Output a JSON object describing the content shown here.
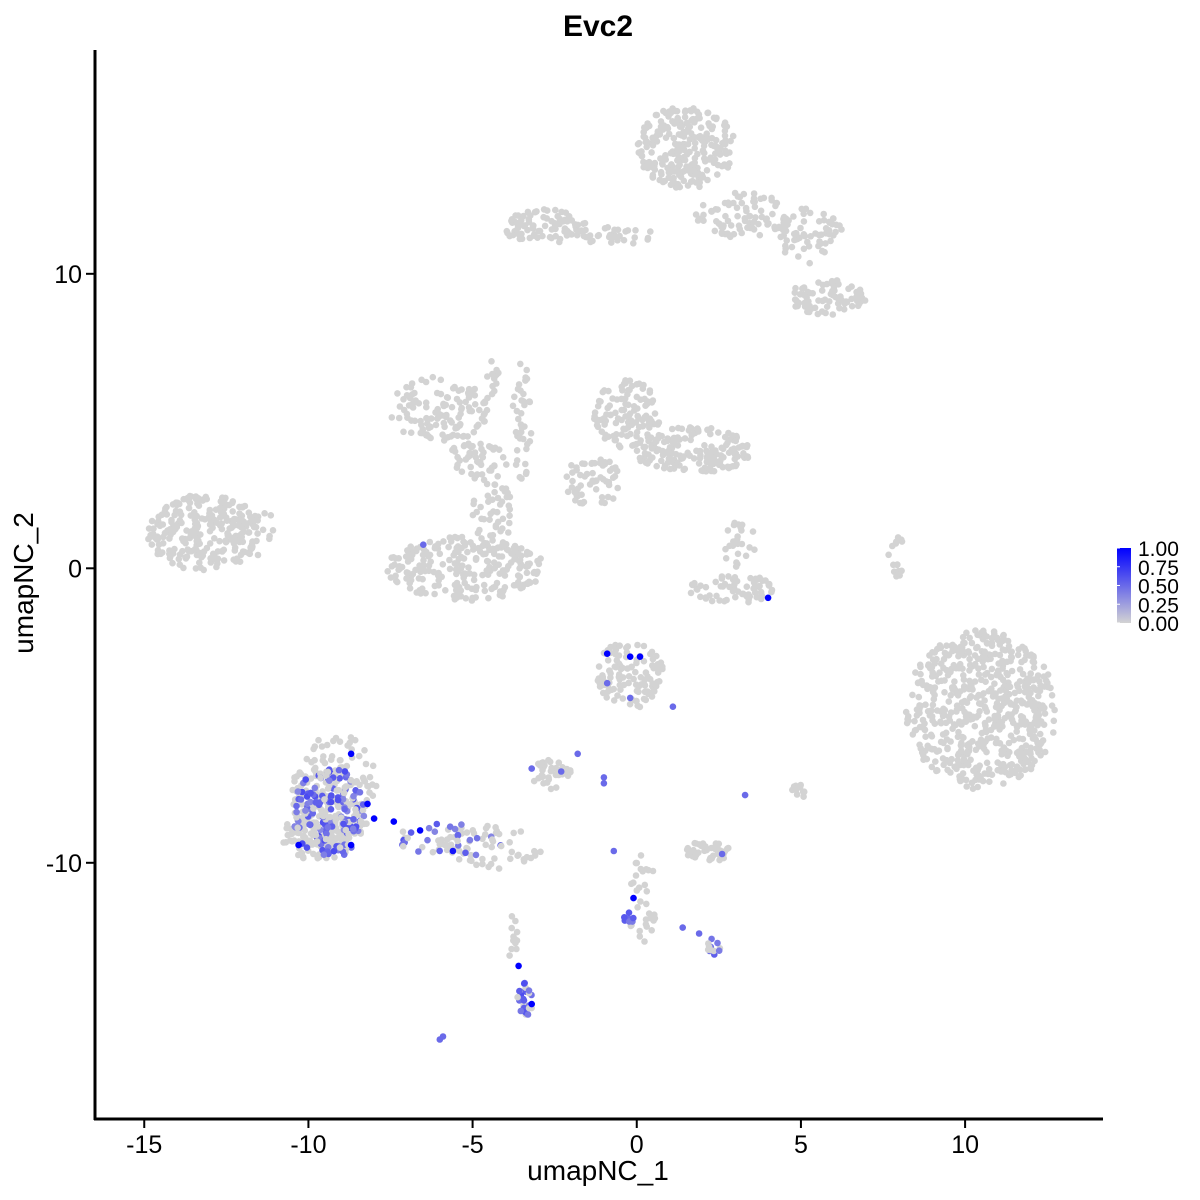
{
  "chart_data": {
    "type": "scatter",
    "title": "Evc2",
    "xlabel": "umapNC_1",
    "ylabel": "umapNC_2",
    "xlim": [
      -16.5,
      14.2
    ],
    "ylim": [
      -18.7,
      17.6
    ],
    "x_ticks": [
      -15,
      -10,
      -5,
      0,
      5,
      10
    ],
    "x_tick_labels": [
      "-15",
      "-10",
      "-5",
      "0",
      "5",
      "10"
    ],
    "y_ticks": [
      -10,
      0,
      10
    ],
    "y_tick_labels": [
      "-10",
      "0",
      "10"
    ],
    "grid": false,
    "legend": {
      "placement": "right",
      "type": "colorbar",
      "labels": [
        "1.00",
        "0.75",
        "0.50",
        "0.25",
        "0.00"
      ],
      "values": [
        1.0,
        0.75,
        0.5,
        0.25,
        0.0
      ],
      "low_color": "#d3d3d3",
      "high_color": "#0000ff"
    },
    "background_clusters": [
      {
        "cx": 1.5,
        "cy": 14.3,
        "rx": 1.5,
        "ry": 1.4,
        "n": 260
      },
      {
        "cx": 3.3,
        "cy": 12.0,
        "rx": 1.5,
        "ry": 0.8,
        "n": 90
      },
      {
        "cx": 5.3,
        "cy": 11.3,
        "rx": 1.0,
        "ry": 1.0,
        "n": 60
      },
      {
        "cx": 5.8,
        "cy": 9.2,
        "rx": 1.2,
        "ry": 0.6,
        "n": 80
      },
      {
        "cx": -2.8,
        "cy": 11.6,
        "rx": 1.3,
        "ry": 0.6,
        "n": 90
      },
      {
        "cx": -0.6,
        "cy": 11.3,
        "rx": 1.2,
        "ry": 0.3,
        "n": 30
      },
      {
        "cx": -6.0,
        "cy": 5.4,
        "rx": 1.6,
        "ry": 1.1,
        "n": 120
      },
      {
        "cx": -4.9,
        "cy": 3.6,
        "rx": 1.0,
        "ry": 0.7,
        "n": 50
      },
      {
        "cx": -3.5,
        "cy": 5.0,
        "rx": 0.3,
        "ry": 2.0,
        "n": 40
      },
      {
        "cx": -5.2,
        "cy": 0.0,
        "rx": 2.4,
        "ry": 1.1,
        "n": 240
      },
      {
        "cx": -4.4,
        "cy": 1.9,
        "rx": 0.6,
        "ry": 1.3,
        "n": 50
      },
      {
        "cx": -0.3,
        "cy": 5.2,
        "rx": 1.0,
        "ry": 1.2,
        "n": 110
      },
      {
        "cx": 1.7,
        "cy": 4.0,
        "rx": 1.8,
        "ry": 0.8,
        "n": 170
      },
      {
        "cx": -1.3,
        "cy": 3.0,
        "rx": 0.9,
        "ry": 0.9,
        "n": 60
      },
      {
        "cx": -13.2,
        "cy": 1.2,
        "rx": 1.7,
        "ry": 1.3,
        "n": 240
      },
      {
        "cx": -11.8,
        "cy": 1.3,
        "rx": 0.8,
        "ry": 0.9,
        "n": 30
      },
      {
        "cx": 10.5,
        "cy": -4.8,
        "rx": 2.3,
        "ry": 2.7,
        "n": 600
      },
      {
        "cx": 2.9,
        "cy": -0.7,
        "rx": 1.3,
        "ry": 0.5,
        "n": 70
      },
      {
        "cx": 3.1,
        "cy": 0.8,
        "rx": 0.5,
        "ry": 1.0,
        "n": 25
      },
      {
        "cx": -0.2,
        "cy": -3.6,
        "rx": 1.0,
        "ry": 1.2,
        "n": 110
      },
      {
        "cx": -9.2,
        "cy": -7.5,
        "rx": 1.3,
        "ry": 2.0,
        "n": 130
      },
      {
        "cx": -9.8,
        "cy": -9.1,
        "rx": 1.0,
        "ry": 0.8,
        "n": 90
      },
      {
        "cx": -2.6,
        "cy": -7.0,
        "rx": 0.6,
        "ry": 0.5,
        "n": 40
      },
      {
        "cx": 2.2,
        "cy": -9.6,
        "rx": 0.7,
        "ry": 0.35,
        "n": 45
      },
      {
        "cx": 4.9,
        "cy": -7.6,
        "rx": 0.3,
        "ry": 0.3,
        "n": 12
      },
      {
        "cx": 7.9,
        "cy": 0.3,
        "rx": 0.3,
        "ry": 0.8,
        "n": 15
      },
      {
        "cx": 0.2,
        "cy": -11.2,
        "rx": 0.4,
        "ry": 1.5,
        "n": 30
      },
      {
        "cx": -4.5,
        "cy": -9.5,
        "rx": 1.6,
        "ry": 0.8,
        "n": 50
      },
      {
        "cx": -3.8,
        "cy": -12.5,
        "rx": 0.2,
        "ry": 0.8,
        "n": 12
      },
      {
        "cx": -4.4,
        "cy": 6.5,
        "rx": 0.2,
        "ry": 0.8,
        "n": 12
      }
    ],
    "expressing_clusters": [
      {
        "cx": -9.4,
        "cy": -8.3,
        "rx": 1.1,
        "ry": 1.6,
        "n": 220,
        "min": 0.35,
        "max": 0.65
      },
      {
        "cx": -5.6,
        "cy": -9.2,
        "rx": 1.7,
        "ry": 0.6,
        "n": 45,
        "min": 0.35,
        "max": 0.6
      },
      {
        "cx": -3.4,
        "cy": -14.6,
        "rx": 0.25,
        "ry": 0.6,
        "n": 30,
        "min": 0.4,
        "max": 0.65
      },
      {
        "cx": 2.3,
        "cy": -12.8,
        "rx": 0.25,
        "ry": 0.35,
        "n": 12,
        "min": 0.4,
        "max": 0.6
      },
      {
        "cx": -0.2,
        "cy": -11.9,
        "rx": 0.25,
        "ry": 0.25,
        "n": 10,
        "min": 0.4,
        "max": 0.6
      }
    ],
    "high_points": [
      {
        "x": -10.3,
        "y": -9.4,
        "v": 1.0
      },
      {
        "x": -8.7,
        "y": -6.3,
        "v": 1.0
      },
      {
        "x": -8.2,
        "y": -8.0,
        "v": 1.0
      },
      {
        "x": -8.0,
        "y": -8.5,
        "v": 1.0
      },
      {
        "x": -8.7,
        "y": -9.4,
        "v": 1.0
      },
      {
        "x": -7.4,
        "y": -8.6,
        "v": 1.0
      },
      {
        "x": -6.6,
        "y": -8.9,
        "v": 1.0
      },
      {
        "x": -5.6,
        "y": -9.6,
        "v": 0.9
      },
      {
        "x": -3.6,
        "y": -13.5,
        "v": 1.0
      },
      {
        "x": -3.2,
        "y": -14.8,
        "v": 1.0
      },
      {
        "x": -0.9,
        "y": -2.9,
        "v": 1.0
      },
      {
        "x": -0.2,
        "y": -3.0,
        "v": 1.0
      },
      {
        "x": 0.1,
        "y": -3.0,
        "v": 1.0
      },
      {
        "x": 4.0,
        "y": -1.0,
        "v": 1.0
      },
      {
        "x": -0.1,
        "y": -11.2,
        "v": 1.0
      }
    ],
    "mid_points": [
      {
        "x": -6.5,
        "y": 0.8,
        "v": 0.5
      },
      {
        "x": -0.9,
        "y": -3.9,
        "v": 0.5
      },
      {
        "x": -0.2,
        "y": -4.4,
        "v": 0.5
      },
      {
        "x": 1.1,
        "y": -4.7,
        "v": 0.5
      },
      {
        "x": -1.0,
        "y": -7.1,
        "v": 0.5
      },
      {
        "x": -1.0,
        "y": -7.3,
        "v": 0.5
      },
      {
        "x": -1.8,
        "y": -6.3,
        "v": 0.5
      },
      {
        "x": -2.3,
        "y": -6.9,
        "v": 0.5
      },
      {
        "x": -3.2,
        "y": -6.8,
        "v": 0.5
      },
      {
        "x": 2.6,
        "y": -9.7,
        "v": 0.5
      },
      {
        "x": 3.3,
        "y": -7.7,
        "v": 0.5
      },
      {
        "x": -0.7,
        "y": -9.6,
        "v": 0.5
      },
      {
        "x": -6.0,
        "y": -16.0,
        "v": 0.5
      },
      {
        "x": 1.4,
        "y": -12.2,
        "v": 0.5
      },
      {
        "x": 1.9,
        "y": -12.4,
        "v": 0.5
      },
      {
        "x": -5.9,
        "y": -15.9,
        "v": 0.5
      }
    ]
  }
}
